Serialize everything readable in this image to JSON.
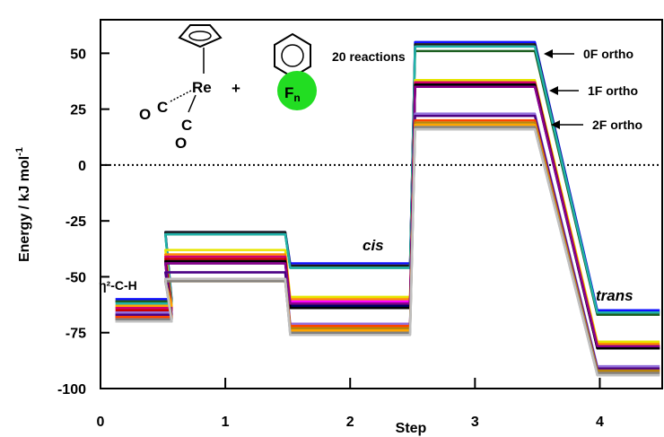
{
  "chart_data": {
    "type": "line",
    "xlabel": "Step",
    "ylabel": "Energy / kJ mol",
    "ylabel_superscript": "-1",
    "xlim": [
      0,
      4.5
    ],
    "ylim": [
      -100,
      65
    ],
    "x_ticks": [
      "0",
      "1",
      "2",
      "3",
      "4"
    ],
    "y_ticks": [
      "50",
      "25",
      "0",
      "-25",
      "-50",
      "-75",
      "-100"
    ],
    "reference_line": 0,
    "annotations": {
      "reactions": "20 reactions",
      "step0": "η²-C-H",
      "cis": "cis",
      "trans": "trans",
      "of_ortho": "0F ortho",
      "onef_ortho": "1F ortho",
      "twof_ortho": "2F ortho"
    },
    "molecule": {
      "re": "Re",
      "plus": "+",
      "co_c1": "C",
      "co_o1": "O",
      "co_c2": "C",
      "co_o2": "O",
      "f": "F",
      "n": "n"
    },
    "series": [
      {
        "color": "#1010ff",
        "values": [
          -60,
          -30,
          -44,
          55,
          -65
        ]
      },
      {
        "color": "#1a1a1a",
        "values": [
          -61,
          -30,
          -45,
          54,
          -66
        ]
      },
      {
        "color": "#1b5e20",
        "values": [
          -61,
          -31,
          -46,
          51,
          -67
        ]
      },
      {
        "color": "#20b2aa",
        "values": [
          -62,
          -31,
          -46,
          53,
          -66
        ]
      },
      {
        "color": "#e6e600",
        "values": [
          -63,
          -38,
          -59,
          38,
          -79
        ]
      },
      {
        "color": "#ff8c00",
        "values": [
          -64,
          -40,
          -60,
          37,
          -80
        ]
      },
      {
        "color": "#ff00ff",
        "values": [
          -66,
          -43,
          -61,
          35,
          -81
        ]
      },
      {
        "color": "#d0006f",
        "values": [
          -64,
          -41,
          -62,
          37,
          -82
        ]
      },
      {
        "color": "#cc0000",
        "values": [
          -65,
          -42,
          -62,
          36,
          -81
        ]
      },
      {
        "color": "#000066",
        "values": [
          -67,
          -44,
          -63,
          35,
          -82
        ]
      },
      {
        "color": "#000000",
        "values": [
          -68,
          -43,
          -64,
          36,
          -82
        ]
      },
      {
        "color": "#8b008b",
        "values": [
          -69,
          -44,
          -62,
          35,
          -81
        ]
      },
      {
        "color": "#9370db",
        "values": [
          -66,
          -48,
          -71,
          23,
          -90
        ]
      },
      {
        "color": "#4b0082",
        "values": [
          -67,
          -48,
          -72,
          22,
          -91
        ]
      },
      {
        "color": "#ff4500",
        "values": [
          -68,
          -51,
          -72,
          20,
          -92
        ]
      },
      {
        "color": "#b8860b",
        "values": [
          -69,
          -51,
          -73,
          19,
          -92
        ]
      },
      {
        "color": "#ffa500",
        "values": [
          -63,
          -52,
          -74,
          18,
          -93
        ]
      },
      {
        "color": "#808080",
        "values": [
          -69,
          -52,
          -75,
          17,
          -93
        ]
      },
      {
        "color": "#a9a9a9",
        "values": [
          -70,
          -51,
          -76,
          16,
          -94
        ]
      },
      {
        "color": "#c0c0c0",
        "values": [
          -70,
          -51,
          -76,
          16,
          -94
        ]
      }
    ]
  }
}
